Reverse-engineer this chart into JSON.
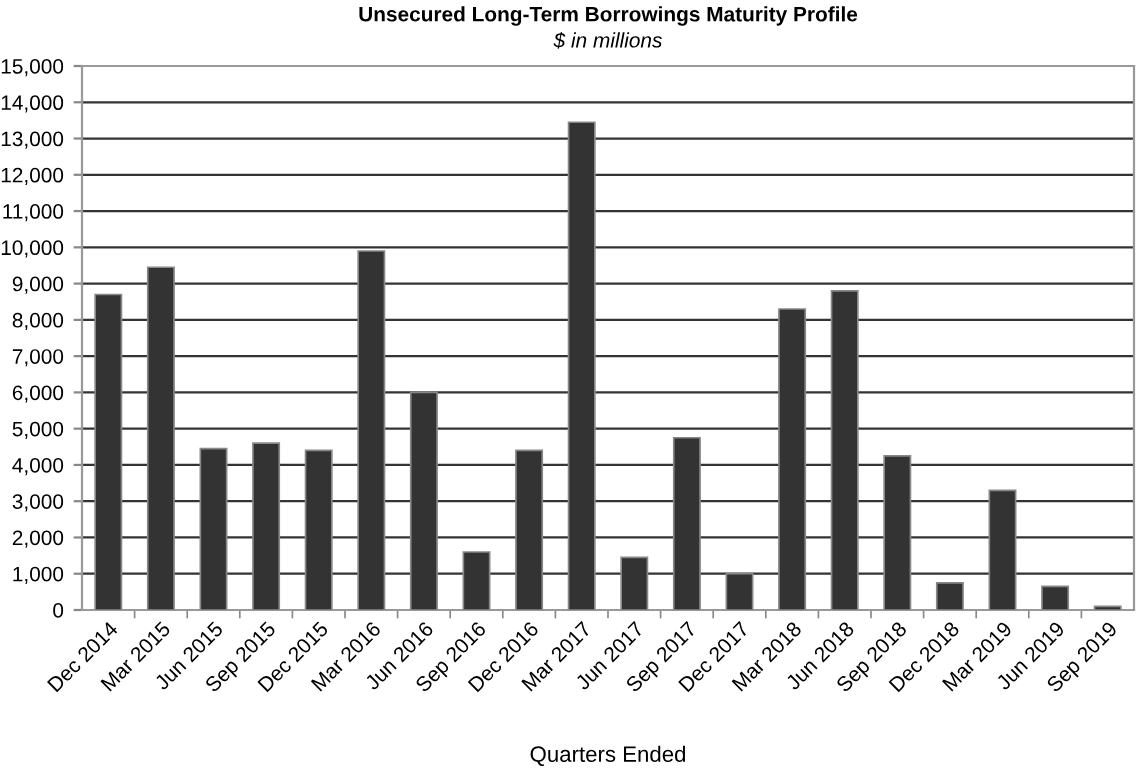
{
  "chart_data": {
    "type": "bar",
    "title": "Unsecured Long-Term Borrowings Maturity Profile",
    "subtitle": "$ in millions",
    "xlabel": "Quarters Ended",
    "categories": [
      "Dec 2014",
      "Mar 2015",
      "Jun 2015",
      "Sep 2015",
      "Dec 2015",
      "Mar 2016",
      "Jun 2016",
      "Sep 2016",
      "Dec 2016",
      "Mar 2017",
      "Jun 2017",
      "Sep 2017",
      "Dec 2017",
      "Mar 2018",
      "Jun 2018",
      "Sep 2018",
      "Dec 2018",
      "Mar 2019",
      "Jun 2019",
      "Sep 2019"
    ],
    "values": [
      8700,
      9450,
      4450,
      4600,
      4400,
      9900,
      6000,
      1600,
      4400,
      13450,
      1450,
      4750,
      1000,
      8300,
      8800,
      4250,
      750,
      3300,
      650,
      100
    ],
    "color": "#333333",
    "ylim": [
      0,
      15000
    ],
    "yticks": [
      {
        "value": 0,
        "label": "0"
      },
      {
        "value": 1000,
        "label": "1,000"
      },
      {
        "value": 2000,
        "label": "2,000"
      },
      {
        "value": 3000,
        "label": "3,000"
      },
      {
        "value": 4000,
        "label": "4,000"
      },
      {
        "value": 5000,
        "label": "5,000"
      },
      {
        "value": 6000,
        "label": "6,000"
      },
      {
        "value": 7000,
        "label": "7,000"
      },
      {
        "value": 8000,
        "label": "8,000"
      },
      {
        "value": 9000,
        "label": "9,000"
      },
      {
        "value": 10000,
        "label": "10,000"
      },
      {
        "value": 11000,
        "label": "11,000"
      },
      {
        "value": 12000,
        "label": "12,000"
      },
      {
        "value": 13000,
        "label": "13,000"
      },
      {
        "value": 14000,
        "label": "14,000"
      },
      {
        "value": 15000,
        "label": "15,000"
      }
    ],
    "grid": "y"
  }
}
